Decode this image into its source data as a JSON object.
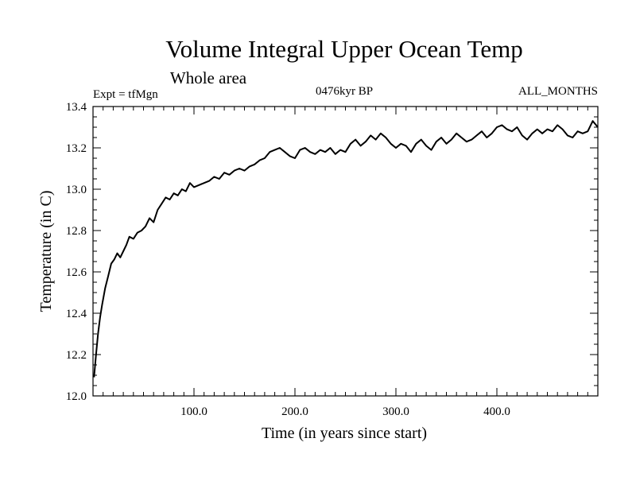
{
  "chart_data": {
    "type": "line",
    "title": "Volume Integral Upper Ocean Temp",
    "subtitle": "Whole area",
    "left_label": "Expt = tfMgn",
    "center_label": "0476kyr BP",
    "right_label": "ALL_MONTHS",
    "xlabel": "Time (in years since start)",
    "ylabel": "Temperature (in C)",
    "xlim": [
      0,
      500
    ],
    "ylim": [
      12.0,
      13.4
    ],
    "x_ticks": [
      100,
      200,
      300,
      400
    ],
    "x_tick_labels": [
      "100.0",
      "200.0",
      "300.0",
      "400.0"
    ],
    "y_ticks": [
      12.0,
      12.2,
      12.4,
      12.6,
      12.8,
      13.0,
      13.2,
      13.4
    ],
    "y_tick_labels": [
      "12.0",
      "12.2",
      "12.4",
      "12.6",
      "12.8",
      "13.0",
      "13.2",
      "13.4"
    ],
    "grid": false,
    "series": [
      {
        "color": "#000000",
        "x": [
          1,
          3,
          5,
          7,
          9,
          12,
          15,
          18,
          21,
          24,
          27,
          30,
          33,
          36,
          40,
          44,
          48,
          52,
          56,
          60,
          64,
          68,
          72,
          76,
          80,
          84,
          88,
          92,
          96,
          100,
          105,
          110,
          115,
          120,
          125,
          130,
          135,
          140,
          145,
          150,
          155,
          160,
          165,
          170,
          175,
          180,
          185,
          190,
          195,
          200,
          205,
          210,
          215,
          220,
          225,
          230,
          235,
          240,
          245,
          250,
          255,
          260,
          265,
          270,
          275,
          280,
          285,
          290,
          295,
          300,
          305,
          310,
          315,
          320,
          325,
          330,
          335,
          340,
          345,
          350,
          355,
          360,
          365,
          370,
          375,
          380,
          385,
          390,
          395,
          400,
          405,
          410,
          415,
          420,
          425,
          430,
          435,
          440,
          445,
          450,
          455,
          460,
          465,
          470,
          475,
          480,
          485,
          490,
          495,
          500
        ],
        "y": [
          12.09,
          12.2,
          12.3,
          12.38,
          12.44,
          12.52,
          12.58,
          12.64,
          12.66,
          12.69,
          12.67,
          12.7,
          12.73,
          12.77,
          12.76,
          12.79,
          12.8,
          12.82,
          12.86,
          12.84,
          12.9,
          12.93,
          12.96,
          12.95,
          12.98,
          12.97,
          13.0,
          12.99,
          13.03,
          13.01,
          13.02,
          13.03,
          13.04,
          13.06,
          13.05,
          13.08,
          13.07,
          13.09,
          13.1,
          13.09,
          13.11,
          13.12,
          13.14,
          13.15,
          13.18,
          13.19,
          13.2,
          13.18,
          13.16,
          13.15,
          13.19,
          13.2,
          13.18,
          13.17,
          13.19,
          13.18,
          13.2,
          13.17,
          13.19,
          13.18,
          13.22,
          13.24,
          13.21,
          13.23,
          13.26,
          13.24,
          13.27,
          13.25,
          13.22,
          13.2,
          13.22,
          13.21,
          13.18,
          13.22,
          13.24,
          13.21,
          13.19,
          13.23,
          13.25,
          13.22,
          13.24,
          13.27,
          13.25,
          13.23,
          13.24,
          13.26,
          13.28,
          13.25,
          13.27,
          13.3,
          13.31,
          13.29,
          13.28,
          13.3,
          13.26,
          13.24,
          13.27,
          13.29,
          13.27,
          13.29,
          13.28,
          13.31,
          13.29,
          13.26,
          13.25,
          13.28,
          13.27,
          13.28,
          13.33,
          13.3
        ]
      }
    ]
  }
}
